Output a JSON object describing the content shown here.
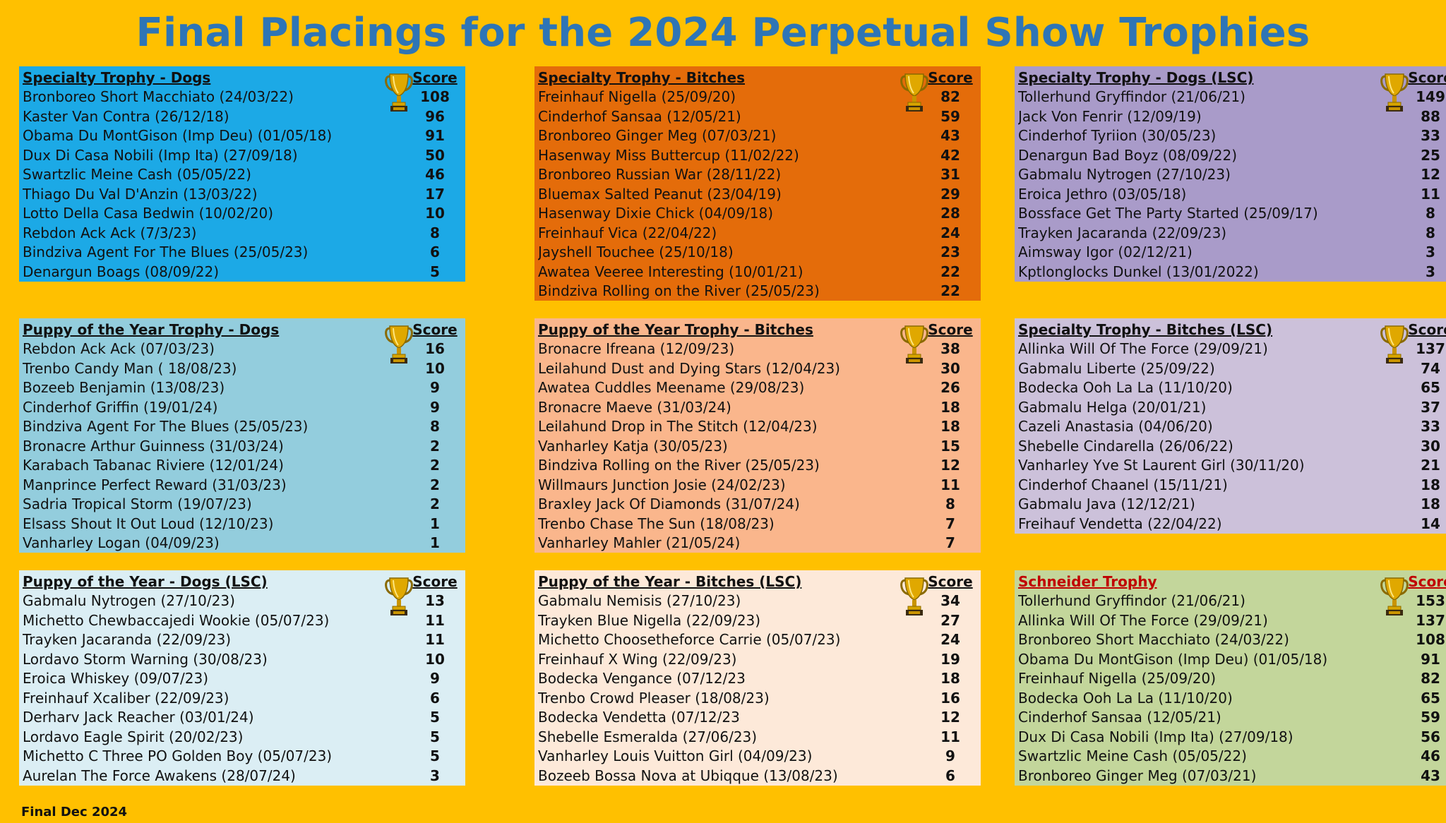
{
  "title": "Final Placings for the 2024 Perpetual Show Trophies",
  "footer": "Final Dec 2024",
  "score_label": "Score",
  "panels": [
    {
      "heading": "Specialty Trophy - Dogs",
      "entries": [
        {
          "name": "Bronboreo Short Macchiato (24/03/22)",
          "score": "108"
        },
        {
          "name": "Kaster Van Contra (26/12/18)",
          "score": "96"
        },
        {
          "name": "Obama Du MontGison (Imp Deu) (01/05/18)",
          "score": "91"
        },
        {
          "name": "Dux Di Casa Nobili (Imp Ita) (27/09/18)",
          "score": "50"
        },
        {
          "name": "Swartzlic Meine Cash (05/05/22)",
          "score": "46"
        },
        {
          "name": "Thiago Du Val D'Anzin (13/03/22)",
          "score": "17"
        },
        {
          "name": "Lotto Della Casa Bedwin (10/02/20)",
          "score": "10"
        },
        {
          "name": "Rebdon Ack Ack (7/3/23)",
          "score": "8"
        },
        {
          "name": "Bindziva Agent For The Blues (25/05/23)",
          "score": "6"
        },
        {
          "name": "Denargun Boags (08/09/22)",
          "score": "5"
        }
      ]
    },
    {
      "heading": "Specialty Trophy - Bitches",
      "entries": [
        {
          "name": "Freinhauf Nigella (25/09/20)",
          "score": "82"
        },
        {
          "name": "Cinderhof Sansaa (12/05/21)",
          "score": "59"
        },
        {
          "name": "Bronboreo Ginger Meg (07/03/21)",
          "score": "43"
        },
        {
          "name": "Hasenway Miss Buttercup (11/02/22)",
          "score": "42"
        },
        {
          "name": "Bronboreo Russian War (28/11/22)",
          "score": "31"
        },
        {
          "name": "Bluemax Salted Peanut (23/04/19)",
          "score": "29"
        },
        {
          "name": "Hasenway Dixie Chick (04/09/18)",
          "score": "28"
        },
        {
          "name": "Freinhauf Vica (22/04/22)",
          "score": "24"
        },
        {
          "name": "Jayshell Touchee (25/10/18)",
          "score": "23"
        },
        {
          "name": "Awatea Veeree Interesting (10/01/21)",
          "score": "22"
        },
        {
          "name": "Bindziva Rolling on the River (25/05/23)",
          "score": "22"
        }
      ]
    },
    {
      "heading": "Specialty Trophy - Dogs (LSC)",
      "entries": [
        {
          "name": "Tollerhund Gryffindor (21/06/21)",
          "score": "149"
        },
        {
          "name": "Jack Von Fenrir (12/09/19)",
          "score": "88"
        },
        {
          "name": "Cinderhof Tyriion (30/05/23)",
          "score": "33"
        },
        {
          "name": "Denargun Bad Boyz (08/09/22)",
          "score": "25"
        },
        {
          "name": "Gabmalu Nytrogen (27/10/23)",
          "score": "12"
        },
        {
          "name": "Eroica Jethro (03/05/18)",
          "score": "11"
        },
        {
          "name": "Bossface Get The Party Started (25/09/17)",
          "score": "8"
        },
        {
          "name": "Trayken Jacaranda (22/09/23)",
          "score": "8"
        },
        {
          "name": "Aimsway Igor (02/12/21)",
          "score": "3"
        },
        {
          "name": "Kptlonglocks Dunkel (13/01/2022)",
          "score": "3"
        }
      ]
    },
    {
      "heading": "Puppy of the Year Trophy - Dogs",
      "entries": [
        {
          "name": "Rebdon Ack Ack (07/03/23)",
          "score": "16"
        },
        {
          "name": "Trenbo Candy Man ( 18/08/23)",
          "score": "10"
        },
        {
          "name": "Bozeeb Benjamin (13/08/23)",
          "score": "9"
        },
        {
          "name": "Cinderhof Griffin (19/01/24)",
          "score": "9"
        },
        {
          "name": "Bindziva Agent For The Blues (25/05/23)",
          "score": "8"
        },
        {
          "name": "Bronacre Arthur Guinness (31/03/24)",
          "score": "2"
        },
        {
          "name": "Karabach Tabanac Riviere (12/01/24)",
          "score": "2"
        },
        {
          "name": "Manprince Perfect Reward (31/03/23)",
          "score": "2"
        },
        {
          "name": "Sadria Tropical Storm (19/07/23)",
          "score": "2"
        },
        {
          "name": "Elsass Shout It Out Loud (12/10/23)",
          "score": "1"
        },
        {
          "name": "Vanharley Logan (04/09/23)",
          "score": "1"
        }
      ]
    },
    {
      "heading": "Puppy of the Year Trophy - Bitches",
      "entries": [
        {
          "name": "Bronacre Ifreana (12/09/23)",
          "score": "38"
        },
        {
          "name": "Leilahund Dust and Dying Stars (12/04/23)",
          "score": "30"
        },
        {
          "name": "Awatea Cuddles Meename (29/08/23)",
          "score": "26"
        },
        {
          "name": "Bronacre Maeve (31/03/24)",
          "score": "18"
        },
        {
          "name": "Leilahund Drop in The Stitch (12/04/23)",
          "score": "18"
        },
        {
          "name": "Vanharley Katja (30/05/23)",
          "score": "15"
        },
        {
          "name": "Bindziva Rolling on the River (25/05/23)",
          "score": "12"
        },
        {
          "name": "Willmaurs Junction Josie (24/02/23)",
          "score": "11"
        },
        {
          "name": "Braxley Jack Of Diamonds (31/07/24)",
          "score": "8"
        },
        {
          "name": "Trenbo Chase The Sun (18/08/23)",
          "score": "7"
        },
        {
          "name": "Vanharley Mahler (21/05/24)",
          "score": "7"
        }
      ]
    },
    {
      "heading": "Specialty Trophy - Bitches (LSC)",
      "entries": [
        {
          "name": "Allinka Will Of The Force (29/09/21)",
          "score": "137"
        },
        {
          "name": "Gabmalu Liberte (25/09/22)",
          "score": "74"
        },
        {
          "name": "Bodecka Ooh La La (11/10/20)",
          "score": "65"
        },
        {
          "name": "Gabmalu Helga (20/01/21)",
          "score": "37"
        },
        {
          "name": "Cazeli Anastasia (04/06/20)",
          "score": "33"
        },
        {
          "name": "Shebelle Cindarella (26/06/22)",
          "score": "30"
        },
        {
          "name": "Vanharley Yve St Laurent Girl (30/11/20)",
          "score": "21"
        },
        {
          "name": "Cinderhof Chaanel (15/11/21)",
          "score": "18"
        },
        {
          "name": "Gabmalu Java (12/12/21)",
          "score": "18"
        },
        {
          "name": "Freihauf Vendetta (22/04/22)",
          "score": "14"
        }
      ]
    },
    {
      "heading": "Puppy of the Year - Dogs (LSC)",
      "entries": [
        {
          "name": "Gabmalu Nytrogen (27/10/23)",
          "score": "13"
        },
        {
          "name": "Michetto Chewbaccajedi Wookie (05/07/23)",
          "score": "11"
        },
        {
          "name": "Trayken Jacaranda (22/09/23)",
          "score": "11"
        },
        {
          "name": "Lordavo Storm Warning (30/08/23)",
          "score": "10"
        },
        {
          "name": "Eroica Whiskey (09/07/23)",
          "score": "9"
        },
        {
          "name": "Freinhauf Xcaliber (22/09/23)",
          "score": "6"
        },
        {
          "name": "Derharv Jack Reacher (03/01/24)",
          "score": "5"
        },
        {
          "name": "Lordavo Eagle Spirit (20/02/23)",
          "score": "5"
        },
        {
          "name": "Michetto C Three PO Golden Boy (05/07/23)",
          "score": "5"
        },
        {
          "name": "Aurelan The Force Awakens (28/07/24)",
          "score": "3"
        }
      ]
    },
    {
      "heading": "Puppy of the Year - Bitches (LSC)",
      "entries": [
        {
          "name": "Gabmalu Nemisis (27/10/23)",
          "score": "34"
        },
        {
          "name": "Trayken Blue Nigella (22/09/23)",
          "score": "27"
        },
        {
          "name": "Michetto Choosetheforce Carrie (05/07/23)",
          "score": "24"
        },
        {
          "name": "Freinhauf X Wing (22/09/23)",
          "score": "19"
        },
        {
          "name": "Bodecka Vengance (07/12/23",
          "score": "18"
        },
        {
          "name": "Trenbo Crowd Pleaser (18/08/23)",
          "score": "16"
        },
        {
          "name": "Bodecka Vendetta (07/12/23",
          "score": "12"
        },
        {
          "name": "Shebelle Esmeralda (27/06/23)",
          "score": "11"
        },
        {
          "name": "Vanharley Louis Vuitton Girl (04/09/23)",
          "score": "9"
        },
        {
          "name": "Bozeeb Bossa Nova at Ubiqque (13/08/23)",
          "score": "6"
        }
      ]
    },
    {
      "heading": "Schneider Trophy",
      "entries": [
        {
          "name": "Tollerhund Gryffindor (21/06/21)",
          "score": "153"
        },
        {
          "name": "Allinka Will Of The Force (29/09/21)",
          "score": "137"
        },
        {
          "name": "Bronboreo Short Macchiato (24/03/22)",
          "score": "108"
        },
        {
          "name": "Obama Du MontGison (Imp Deu) (01/05/18)",
          "score": "91"
        },
        {
          "name": "Freinhauf Nigella (25/09/20)",
          "score": "82"
        },
        {
          "name": "Bodecka Ooh La La (11/10/20)",
          "score": "65"
        },
        {
          "name": "Cinderhof Sansaa (12/05/21)",
          "score": "59"
        },
        {
          "name": "Dux Di Casa Nobili (Imp Ita) (27/09/18)",
          "score": "56"
        },
        {
          "name": "Swartzlic Meine Cash (05/05/22)",
          "score": "46"
        },
        {
          "name": "Bronboreo Ginger Meg (07/03/21)",
          "score": "43"
        }
      ]
    }
  ]
}
